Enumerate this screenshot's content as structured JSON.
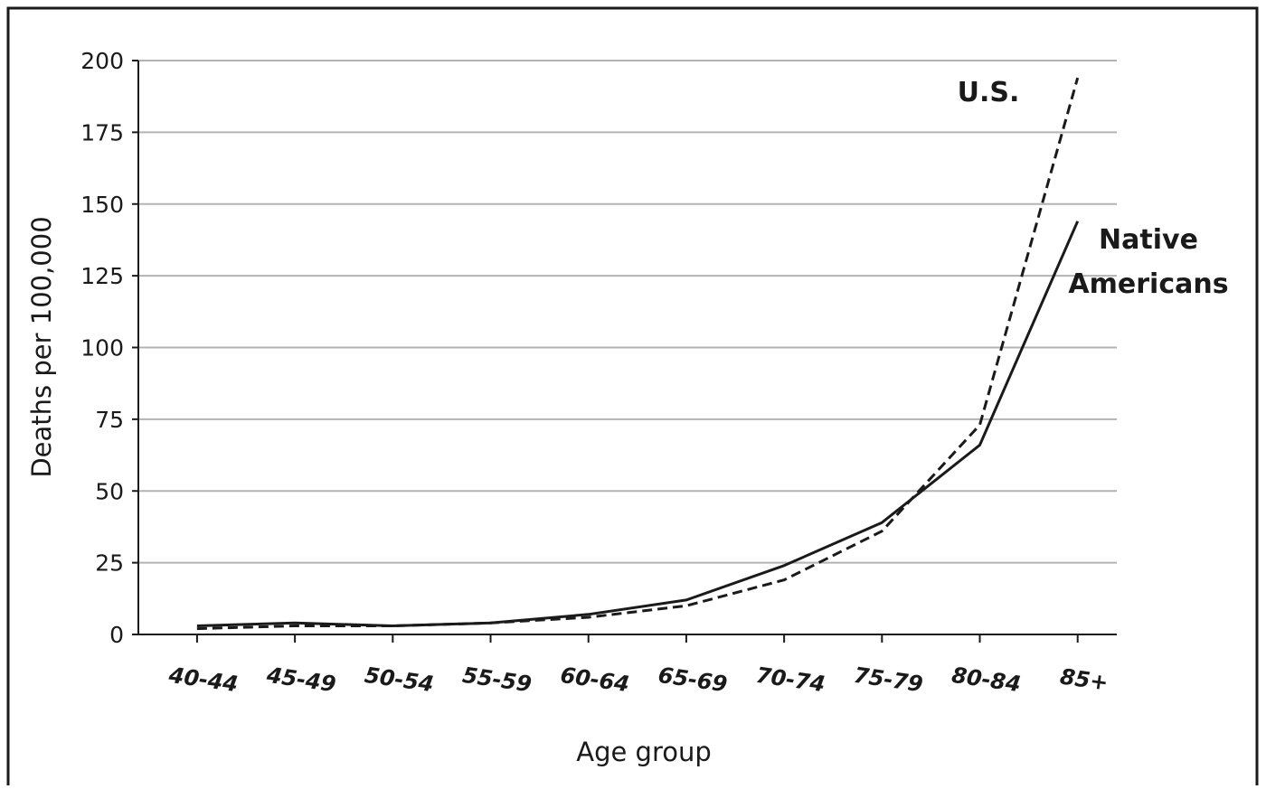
{
  "chart_data": {
    "type": "line",
    "categories": [
      "40-44",
      "45-49",
      "50-54",
      "55-59",
      "60-64",
      "65-69",
      "70-74",
      "75-79",
      "80-84",
      "85+"
    ],
    "series": [
      {
        "name": "U.S.",
        "line_style": "dashed",
        "values": [
          2,
          3,
          3,
          4,
          6,
          10,
          19,
          36,
          73,
          194
        ]
      },
      {
        "name": "Native Americans",
        "line_style": "solid",
        "values": [
          3,
          4,
          3,
          4,
          7,
          12,
          24,
          39,
          66,
          144
        ]
      }
    ],
    "series_label_lines": [
      [
        "U.S."
      ],
      [
        "Native",
        "Americans"
      ]
    ],
    "xlabel": "Age group",
    "ylabel": "Deaths per 100,000",
    "ylim": [
      0,
      200
    ],
    "yticks": [
      0,
      25,
      50,
      75,
      100,
      125,
      150,
      175,
      200
    ],
    "grid": "horizontal",
    "colors": {
      "lines": "#1a1a1a",
      "grid": "#b3b3b3",
      "frame": "#1a1a1a"
    }
  }
}
